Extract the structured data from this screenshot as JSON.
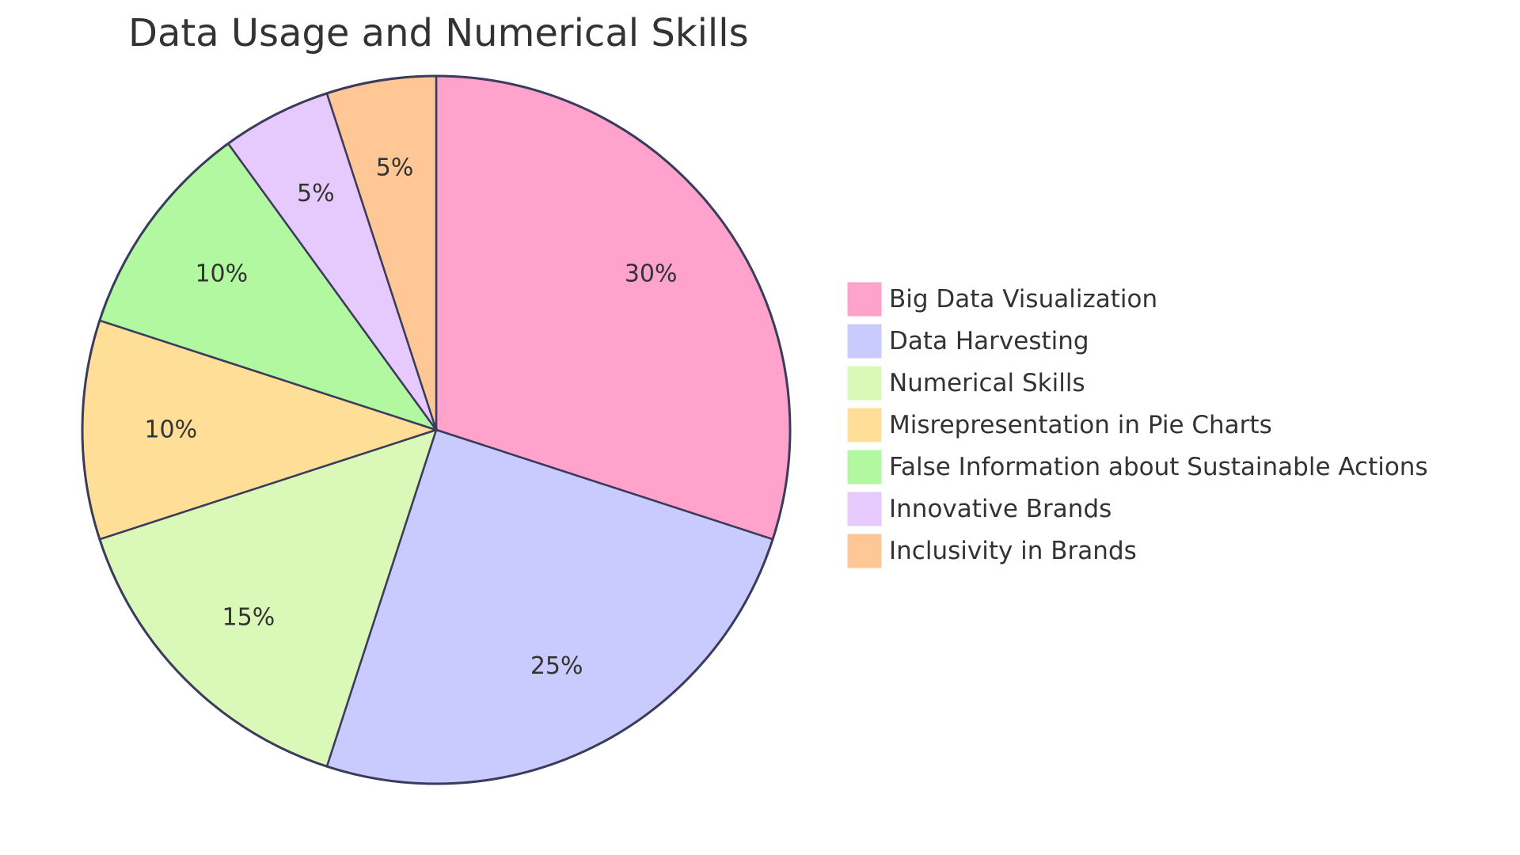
{
  "chart_data": {
    "type": "pie",
    "title": "Data Usage and Numerical Skills",
    "legend_position": "right",
    "slices": [
      {
        "label": "Big Data Visualization",
        "value": 30,
        "display": "30%",
        "color": "#FFA3CD"
      },
      {
        "label": "Data Harvesting",
        "value": 25,
        "display": "25%",
        "color": "#C9CAFD"
      },
      {
        "label": "Numerical Skills",
        "value": 15,
        "display": "15%",
        "color": "#DAF9B9"
      },
      {
        "label": "Misrepresentation in Pie Charts",
        "value": 10,
        "display": "10%",
        "color": "#FFDF97"
      },
      {
        "label": "False Information about Sustainable Actions",
        "value": 10,
        "display": "10%",
        "color": "#B1F8A1"
      },
      {
        "label": "Innovative Brands",
        "value": 5,
        "display": "5%",
        "color": "#E6CAFE"
      },
      {
        "label": "Inclusivity in Brands",
        "value": 5,
        "display": "5%",
        "color": "#FFC795"
      }
    ]
  }
}
